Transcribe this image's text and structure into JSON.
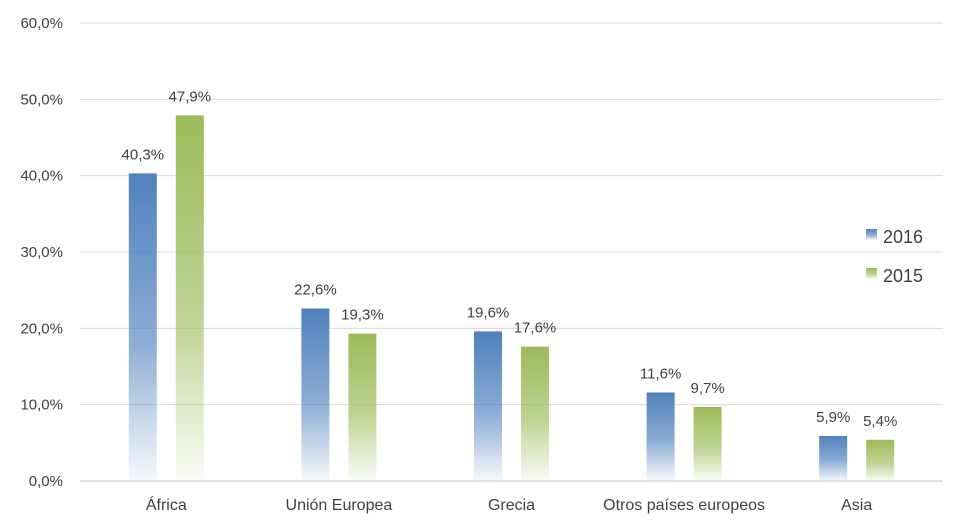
{
  "chart_data": {
    "type": "bar",
    "categories": [
      "África",
      "Unión Europea",
      "Grecia",
      "Otros países europeos",
      "Asia"
    ],
    "series": [
      {
        "name": "2016",
        "values": [
          40.3,
          22.6,
          19.6,
          11.6,
          5.9
        ],
        "labels": [
          "40,3%",
          "22,6%",
          "19,6%",
          "11,6%",
          "5,9%"
        ],
        "color": "#4f81bd"
      },
      {
        "name": "2015",
        "values": [
          47.9,
          19.3,
          17.6,
          9.7,
          5.4
        ],
        "labels": [
          "47,9%",
          "19,3%",
          "17,6%",
          "9,7%",
          "5,4%"
        ],
        "color": "#9bbb59"
      }
    ],
    "y_ticks": [
      0,
      10,
      20,
      30,
      40,
      50,
      60
    ],
    "y_tick_labels": [
      "0,0%",
      "10,0%",
      "20,0%",
      "30,0%",
      "40,0%",
      "50,0%",
      "60,0%"
    ],
    "ylim": [
      0,
      60
    ],
    "grid": true,
    "legend_position": "right",
    "bar_fill": "gradient fading to white at bottom"
  }
}
